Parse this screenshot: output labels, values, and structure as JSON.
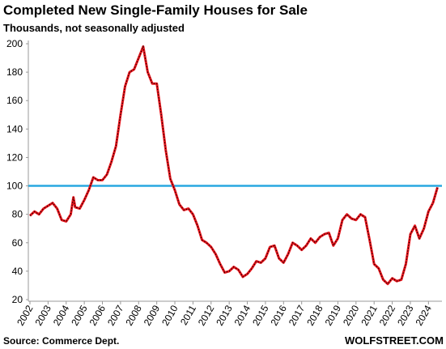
{
  "chart_data": {
    "type": "line",
    "title": "Completed New Single-Family Houses for Sale",
    "subtitle": "Thousands,  not seasonally adjusted",
    "source": "Source: Commerce Dept.",
    "watermark": "WOLFSTREET.COM",
    "x": [
      2002.0,
      2002.25,
      2002.5,
      2002.75,
      2003.0,
      2003.25,
      2003.5,
      2003.75,
      2004.0,
      2004.25,
      2004.4,
      2004.5,
      2004.75,
      2005.0,
      2005.25,
      2005.5,
      2005.75,
      2006.0,
      2006.25,
      2006.5,
      2006.75,
      2007.0,
      2007.25,
      2007.5,
      2007.75,
      2008.0,
      2008.25,
      2008.5,
      2008.75,
      2009.0,
      2009.25,
      2009.5,
      2009.75,
      2010.0,
      2010.25,
      2010.5,
      2010.75,
      2011.0,
      2011.25,
      2011.5,
      2011.75,
      2012.0,
      2012.25,
      2012.5,
      2012.75,
      2013.0,
      2013.25,
      2013.5,
      2013.75,
      2014.0,
      2014.25,
      2014.5,
      2014.75,
      2015.0,
      2015.25,
      2015.5,
      2015.75,
      2016.0,
      2016.25,
      2016.5,
      2016.75,
      2017.0,
      2017.25,
      2017.5,
      2017.75,
      2018.0,
      2018.25,
      2018.5,
      2018.75,
      2019.0,
      2019.25,
      2019.5,
      2019.75,
      2020.0,
      2020.25,
      2020.5,
      2020.75,
      2021.0,
      2021.25,
      2021.5,
      2021.75,
      2022.0,
      2022.25,
      2022.5,
      2022.75,
      2023.0,
      2023.25,
      2023.5,
      2023.75,
      2024.0,
      2024.25,
      2024.5
    ],
    "values": [
      79,
      82,
      80,
      84,
      86,
      88,
      84,
      76,
      75,
      80,
      92,
      85,
      84,
      90,
      97,
      106,
      104,
      104,
      108,
      117,
      128,
      150,
      170,
      180,
      182,
      190,
      198,
      180,
      172,
      172,
      150,
      125,
      105,
      97,
      87,
      83,
      84,
      80,
      72,
      62,
      60,
      57,
      52,
      45,
      39,
      40,
      43,
      41,
      36,
      38,
      42,
      47,
      46,
      49,
      57,
      58,
      49,
      46,
      52,
      60,
      58,
      55,
      58,
      63,
      60,
      64,
      66,
      67,
      58,
      63,
      76,
      80,
      77,
      76,
      80,
      78,
      62,
      45,
      42,
      34,
      31,
      35,
      33,
      34,
      45,
      66,
      72,
      63,
      70,
      82,
      88,
      99
    ],
    "color": "#e8141b",
    "reference_line": {
      "value": 100,
      "color": "#29a8e0"
    },
    "xlim": [
      2002,
      2024.7
    ],
    "xticks": [
      2002,
      2003,
      2004,
      2005,
      2006,
      2007,
      2008,
      2009,
      2010,
      2011,
      2012,
      2013,
      2014,
      2015,
      2016,
      2017,
      2018,
      2019,
      2020,
      2021,
      2022,
      2023,
      2024
    ],
    "ylim": [
      20,
      200
    ],
    "yticks": [
      20,
      40,
      60,
      80,
      100,
      120,
      140,
      160,
      180,
      200
    ]
  }
}
